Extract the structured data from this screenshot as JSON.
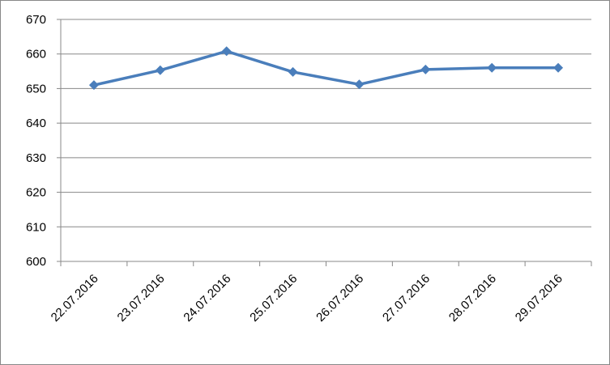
{
  "chart_data": {
    "type": "line",
    "categories": [
      "22.07.2016",
      "23.07.2016",
      "24.07.2016",
      "25.07.2016",
      "26.07.2016",
      "27.07.2016",
      "28.07.2016",
      "29.07.2016"
    ],
    "series": [
      {
        "color": "#4a7ebb",
        "values": [
          651,
          655.3,
          660.8,
          654.8,
          651.2,
          655.5,
          656,
          656
        ]
      }
    ],
    "ylim": [
      600,
      670
    ],
    "yticks": [
      600,
      610,
      620,
      630,
      640,
      650,
      660,
      670
    ],
    "grid": true
  }
}
